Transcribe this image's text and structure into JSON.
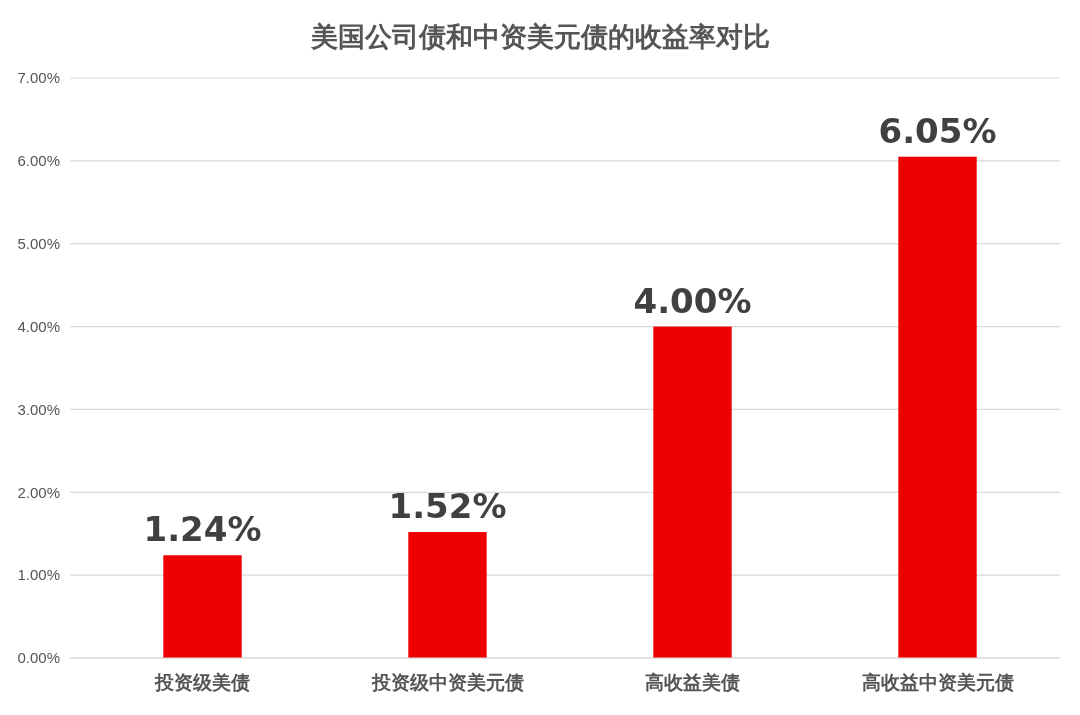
{
  "chart_data": {
    "type": "bar",
    "title": "美国公司债和中资美元债的收益率对比",
    "categories": [
      "投资级美债",
      "投资级中资美元债",
      "高收益美债",
      "高收益中资美元债"
    ],
    "values": [
      1.24,
      1.52,
      4.0,
      6.05
    ],
    "value_labels": [
      "1.24%",
      "1.52%",
      "4.00%",
      "6.05%"
    ],
    "color": "#ee0000",
    "ylim": [
      0,
      7
    ],
    "yticks": [
      {
        "value": 0,
        "label": "0.00%"
      },
      {
        "value": 1,
        "label": "1.00%"
      },
      {
        "value": 2,
        "label": "2.00%"
      },
      {
        "value": 3,
        "label": "3.00%"
      },
      {
        "value": 4,
        "label": "4.00%"
      },
      {
        "value": 5,
        "label": "5.00%"
      },
      {
        "value": 6,
        "label": "6.00%"
      },
      {
        "value": 7,
        "label": "7.00%"
      }
    ],
    "grid": "y"
  }
}
